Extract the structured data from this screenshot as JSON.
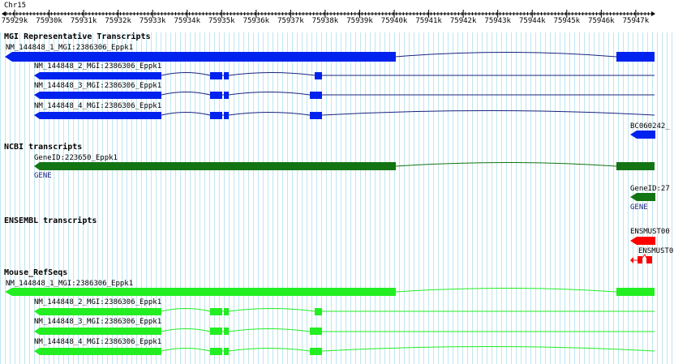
{
  "chromosome": "Chr15",
  "ruler": {
    "ticks": [
      "75929k",
      "75930k",
      "75931k",
      "75932k",
      "75933k",
      "75934k",
      "75935k",
      "75936k",
      "75937k",
      "75938k",
      "75939k",
      "75940k",
      "75941k",
      "75942k",
      "75943k",
      "75944k",
      "75945k",
      "75946k",
      "75947k"
    ]
  },
  "tracks": {
    "mgi": {
      "title": "MGI Representative Transcripts",
      "transcripts": [
        "NM_144848_1_MGI:2386306_Eppk1",
        "NM_144848_2_MGI:2386306_Eppk1",
        "NM_144848_3_MGI:2386306_Eppk1",
        "NM_144848_4_MGI:2386306_Eppk1",
        "BC060242_"
      ],
      "color": "#0022ee"
    },
    "ncbi": {
      "title": "NCBI transcripts",
      "genes": [
        {
          "name": "GeneID:223650_Eppk1",
          "type": "GENE"
        },
        {
          "name": "GeneID:27",
          "type": "GENE"
        }
      ],
      "color": "#137413"
    },
    "ensembl": {
      "title": "ENSEMBL transcripts",
      "transcripts": [
        "ENSMUST00",
        "ENSMUST0"
      ],
      "color": "#ff0000"
    },
    "refseq": {
      "title": "Mouse_RefSeqs",
      "transcripts": [
        "NM_144848_1_MGI:2386306_Eppk1",
        "NM_144848_2_MGI:2386306_Eppk1",
        "NM_144848_3_MGI:2386306_Eppk1",
        "NM_144848_4_MGI:2386306_Eppk1"
      ],
      "color": "#22ee22"
    }
  }
}
